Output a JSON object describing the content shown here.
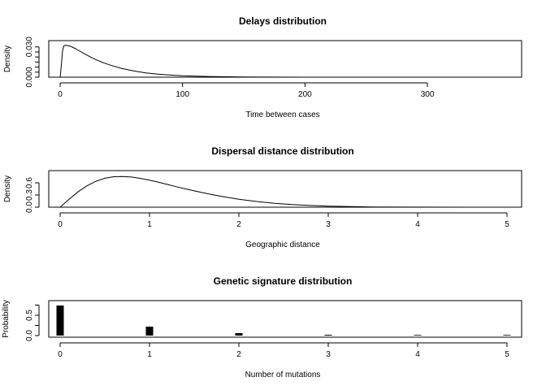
{
  "chart_data": [
    {
      "type": "line",
      "title": "Delays distribution",
      "xlabel": "Time between cases",
      "ylabel": "Density",
      "xlim": [
        0,
        365
      ],
      "ylim": [
        0,
        0.033
      ],
      "xticks": [
        0,
        100,
        200,
        300
      ],
      "yticks": [
        0.0,
        0.005,
        0.01,
        0.015,
        0.02,
        0.025,
        0.03
      ],
      "ytick_labels": [
        "0.000",
        "",
        "",
        "",
        "",
        "",
        "0.030"
      ],
      "x": [
        0,
        1,
        2,
        3,
        4,
        5,
        6,
        8,
        10,
        12,
        15,
        20,
        25,
        30,
        35,
        40,
        50,
        60,
        70,
        80,
        90,
        100,
        120,
        150,
        200,
        250,
        300,
        365
      ],
      "y": [
        0.0,
        0.012,
        0.026,
        0.031,
        0.0315,
        0.0316,
        0.0314,
        0.0308,
        0.0298,
        0.0286,
        0.0266,
        0.0231,
        0.0199,
        0.017,
        0.0145,
        0.0123,
        0.0088,
        0.0062,
        0.0043,
        0.003,
        0.0021,
        0.0014,
        0.0007,
        0.0002,
        2e-05,
        0.0,
        0.0,
        0.0
      ],
      "grid": false
    },
    {
      "type": "line",
      "title": "Dispersal distance distribution",
      "xlabel": "Geographic distance",
      "ylabel": "Density",
      "xlim": [
        0,
        5
      ],
      "ylim": [
        0,
        0.86
      ],
      "xticks": [
        0,
        1,
        2,
        3,
        4,
        5
      ],
      "yticks": [
        0.0,
        0.3,
        0.6
      ],
      "ytick_labels": [
        "0.0",
        "0.3",
        "0.6"
      ],
      "x": [
        0,
        0.1,
        0.2,
        0.3,
        0.4,
        0.5,
        0.6,
        0.7,
        0.8,
        0.9,
        1.0,
        1.1,
        1.2,
        1.3,
        1.4,
        1.5,
        1.6,
        1.7,
        1.8,
        1.9,
        2.0,
        2.2,
        2.4,
        2.6,
        2.8,
        3.0,
        3.5,
        4.0,
        4.5,
        5.0
      ],
      "y": [
        0.0,
        0.197,
        0.377,
        0.527,
        0.639,
        0.712,
        0.75,
        0.757,
        0.742,
        0.709,
        0.665,
        0.614,
        0.56,
        0.505,
        0.452,
        0.401,
        0.354,
        0.31,
        0.269,
        0.231,
        0.196,
        0.14,
        0.097,
        0.065,
        0.042,
        0.026,
        0.007,
        0.001,
        0.0,
        0.0
      ],
      "grid": false
    },
    {
      "type": "bar",
      "title": "Genetic signature distribution",
      "xlabel": "Number of mutations",
      "ylabel": "Probability",
      "xlim": [
        0,
        5
      ],
      "ylim": [
        0,
        0.76
      ],
      "xticks": [
        0,
        1,
        2,
        3,
        4,
        5
      ],
      "yticks": [
        0.0,
        0.25,
        0.5,
        0.75
      ],
      "ytick_labels": [
        "0.0",
        "",
        "0.5",
        ""
      ],
      "categories": [
        0,
        1,
        2,
        3,
        4,
        5
      ],
      "values": [
        0.74,
        0.22,
        0.06,
        0.02,
        0.01,
        0.0
      ],
      "grid": false
    }
  ]
}
